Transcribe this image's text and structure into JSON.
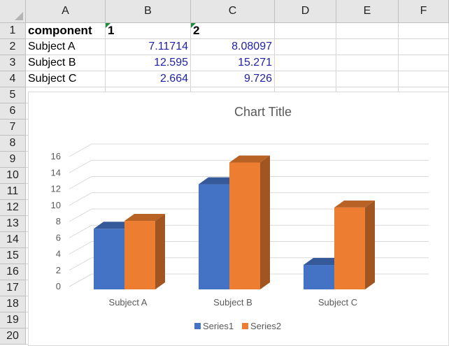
{
  "sheet": {
    "columns": [
      "A",
      "B",
      "C",
      "D",
      "E",
      "F"
    ],
    "rows": [
      "1",
      "2",
      "3",
      "4",
      "5",
      "6",
      "7",
      "8",
      "9",
      "10",
      "11",
      "12",
      "13",
      "14",
      "15",
      "16",
      "17",
      "18",
      "19",
      "20"
    ],
    "cells": [
      [
        "component",
        "1",
        "2"
      ],
      [
        "Subject A",
        "7.11714",
        "8.08097"
      ],
      [
        "Subject B",
        "12.595",
        "15.271"
      ],
      [
        "Subject C",
        "2.664",
        "9.726"
      ]
    ]
  },
  "chart_data": {
    "type": "bar",
    "title": "Chart Title",
    "categories": [
      "Subject A",
      "Subject B",
      "Subject C"
    ],
    "series": [
      {
        "name": "Series1",
        "values": [
          7.11714,
          12.595,
          2.664
        ],
        "color": "#4472c4"
      },
      {
        "name": "Series2",
        "values": [
          8.08097,
          15.271,
          9.726
        ],
        "color": "#ed7d31"
      }
    ],
    "ylim": [
      0,
      16
    ],
    "yticks": [
      "0",
      "2",
      "4",
      "6",
      "8",
      "10",
      "12",
      "14",
      "16"
    ],
    "grid": true,
    "legend": "bottom",
    "style": "3d-clustered-column"
  }
}
